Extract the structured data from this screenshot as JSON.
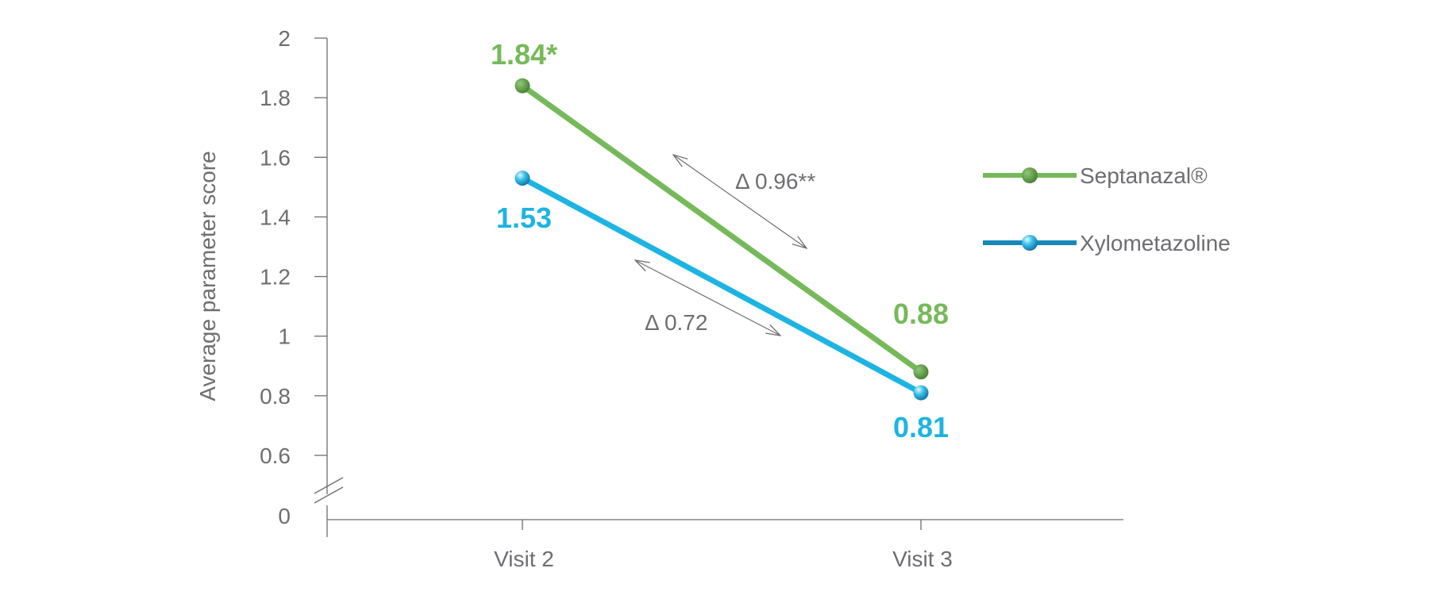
{
  "chart_data": {
    "type": "line",
    "ylabel": "Average parameter score",
    "xlabel": "",
    "categories": [
      "Visit 2",
      "Visit 3"
    ],
    "y_ticks": [
      "0",
      "0.6",
      "0.8",
      "1",
      "1.2",
      "1.4",
      "1.6",
      "1.8",
      "2"
    ],
    "ylim": [
      0.6,
      2
    ],
    "axis_break": true,
    "grid": false,
    "legend_position": "right",
    "series": [
      {
        "name": "Septanazal®",
        "color": "#76b95a",
        "marker_color": "#4e8a3a",
        "values": [
          1.84,
          0.88
        ],
        "labels": [
          "1.84*",
          "0.88"
        ]
      },
      {
        "name": "Xylometazoline",
        "color": "#1db4e2",
        "marker_color": "#1a8fc0",
        "values": [
          1.53,
          0.81
        ],
        "labels": [
          "1.53",
          "0.81"
        ]
      }
    ],
    "annotations": [
      {
        "text": "Δ 0.96**",
        "series": "Septanazal®"
      },
      {
        "text": "Δ 0.72",
        "series": "Xylometazoline"
      }
    ]
  }
}
